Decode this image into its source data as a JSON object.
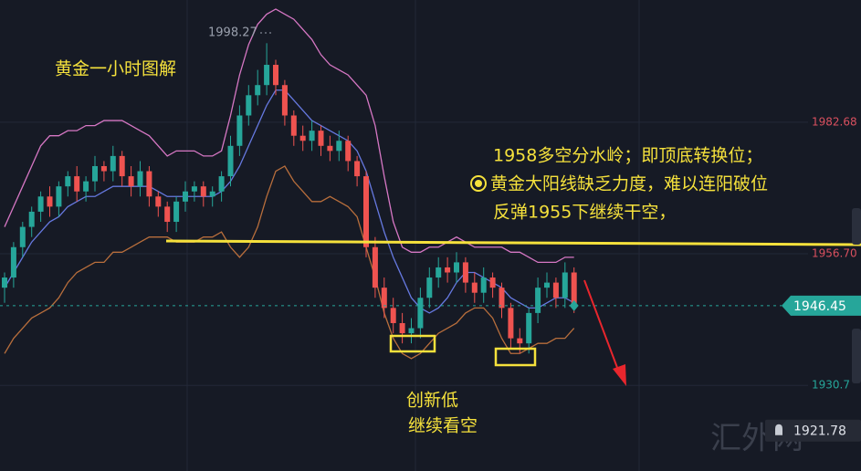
{
  "chart_data": {
    "type": "candlestick",
    "title": "黄金一小时图解",
    "notes": [
      "1958多空分水岭；即顶底转换位；",
      "黄金大阳线缺乏力度，难以连阳破位",
      "反弹1955下继续干空，"
    ],
    "low_notes": [
      "创新低",
      "继续看空"
    ],
    "watermark": "汇外网",
    "peak_label": "1998.27",
    "current_price": 1946.45,
    "alert_price": 1921.78,
    "ylim": [
      1913.8,
      2006.8
    ],
    "yticks": [
      1982.68,
      {
        "value": 1956.7,
        "label": "1956.70"
      },
      1930.7
    ],
    "ytick_colors": [
      "#d9505f",
      "#d9505f",
      "#26a69a"
    ],
    "up_color": "#26a69a",
    "down_color": "#ef5350",
    "open": [
      1950,
      1952,
      1958,
      1962,
      1965,
      1968,
      1966,
      1970,
      1972,
      1969,
      1971,
      1974,
      1973,
      1976,
      1972,
      1970,
      1973,
      1968,
      1966,
      1963,
      1967,
      1969,
      1970,
      1968,
      1969,
      1972,
      1978,
      1984,
      1988,
      1990,
      1994,
      1990,
      1984,
      1980,
      1979,
      1981,
      1978,
      1977,
      1979,
      1975,
      1972,
      1958,
      1950,
      1946,
      1943,
      1941,
      1942,
      1948,
      1952,
      1954,
      1953,
      1955,
      1951,
      1949,
      1952,
      1950,
      1946,
      1940,
      1939,
      1945,
      1950,
      1951,
      1948,
      1953
    ],
    "high": [
      1953,
      1959,
      1963,
      1966,
      1969,
      1970,
      1971,
      1973,
      1974,
      1972,
      1976,
      1975,
      1978,
      1977,
      1974,
      1975,
      1974,
      1969,
      1967,
      1968,
      1971,
      1971,
      1971,
      1970,
      1973,
      1980,
      1986,
      1990,
      1993,
      1998.27,
      1995,
      1991,
      1985,
      1982,
      1983,
      1982,
      1980,
      1981,
      1980,
      1976,
      1973,
      1960,
      1952,
      1948,
      1945,
      1944,
      1950,
      1954,
      1956,
      1956,
      1957,
      1956,
      1953,
      1954,
      1953,
      1951,
      1947,
      1942,
      1946,
      1952,
      1953,
      1952,
      1955,
      1954
    ],
    "low": [
      1947,
      1950,
      1956,
      1960,
      1963,
      1964,
      1964,
      1968,
      1967,
      1967,
      1969,
      1971,
      1971,
      1970,
      1968,
      1968,
      1966,
      1964,
      1961,
      1961,
      1965,
      1967,
      1966,
      1966,
      1967,
      1970,
      1976,
      1982,
      1986,
      1988,
      1988,
      1982,
      1978,
      1977,
      1977,
      1976,
      1975,
      1975,
      1973,
      1970,
      1956,
      1948,
      1944,
      1941,
      1939,
      1939,
      1940,
      1946,
      1950,
      1951,
      1951,
      1949,
      1947,
      1947,
      1948,
      1944,
      1938,
      1937,
      1937,
      1943,
      1948,
      1946,
      1946,
      1945
    ],
    "close": [
      1952,
      1958,
      1962,
      1965,
      1968,
      1966,
      1970,
      1972,
      1969,
      1971,
      1974,
      1973,
      1976,
      1972,
      1970,
      1973,
      1968,
      1966,
      1963,
      1967,
      1969,
      1970,
      1968,
      1969,
      1972,
      1978,
      1984,
      1988,
      1990,
      1994,
      1990,
      1984,
      1980,
      1979,
      1981,
      1978,
      1977,
      1979,
      1975,
      1972,
      1958,
      1950,
      1946,
      1943,
      1941,
      1942,
      1948,
      1952,
      1954,
      1953,
      1955,
      1951,
      1949,
      1952,
      1950,
      1946,
      1940,
      1939,
      1945,
      1950,
      1951,
      1948,
      1953,
      1946.45
    ],
    "bands": [
      {
        "color": "#d677c4",
        "values": [
          1962,
          1966,
          1970,
          1974,
          1978,
          1980,
          1980,
          1981,
          1981,
          1982,
          1982,
          1983,
          1983,
          1983,
          1982,
          1981,
          1980,
          1978,
          1976,
          1977,
          1977,
          1977,
          1976,
          1976,
          1977,
          1984,
          1992,
          1998,
          2002,
          2004,
          2005,
          2004,
          2003,
          2001,
          1999,
          1996,
          1994,
          1993,
          1992,
          1990,
          1988,
          1982,
          1972,
          1963,
          1958,
          1957,
          1957,
          1958,
          1958,
          1959,
          1960,
          1959,
          1958,
          1958,
          1958,
          1958,
          1957,
          1957,
          1956,
          1955,
          1955,
          1955,
          1956,
          1956
        ]
      },
      {
        "color": "#6679e0",
        "values": [
          1950,
          1953,
          1956,
          1959,
          1961,
          1963,
          1964,
          1966,
          1967,
          1968,
          1968,
          1969,
          1970,
          1970,
          1970,
          1970,
          1970,
          1969,
          1968,
          1968,
          1968,
          1968,
          1968,
          1968,
          1969,
          1971,
          1974,
          1978,
          1982,
          1986,
          1989,
          1989,
          1987,
          1985,
          1983,
          1982,
          1981,
          1980,
          1979,
          1977,
          1973,
          1967,
          1961,
          1956,
          1952,
          1948,
          1946,
          1945,
          1946,
          1948,
          1951,
          1953,
          1953,
          1952,
          1951,
          1950,
          1948,
          1947,
          1946,
          1946,
          1947,
          1948,
          1948,
          1947
        ]
      },
      {
        "color": "#b86e3c",
        "values": [
          1937,
          1940,
          1942,
          1944,
          1945,
          1946,
          1948,
          1951,
          1953,
          1954,
          1955,
          1955,
          1957,
          1957,
          1958,
          1959,
          1960,
          1960,
          1960,
          1959,
          1959,
          1959,
          1960,
          1960,
          1961,
          1958,
          1956,
          1958,
          1962,
          1968,
          1973,
          1974,
          1971,
          1969,
          1967,
          1967,
          1968,
          1967,
          1966,
          1964,
          1958,
          1952,
          1945,
          1940,
          1937,
          1936,
          1937,
          1939,
          1941,
          1942,
          1943,
          1945,
          1946,
          1946,
          1944,
          1940,
          1937,
          1937,
          1938,
          1939,
          1939,
          1940,
          1940,
          1942
        ]
      }
    ],
    "grid": true
  }
}
